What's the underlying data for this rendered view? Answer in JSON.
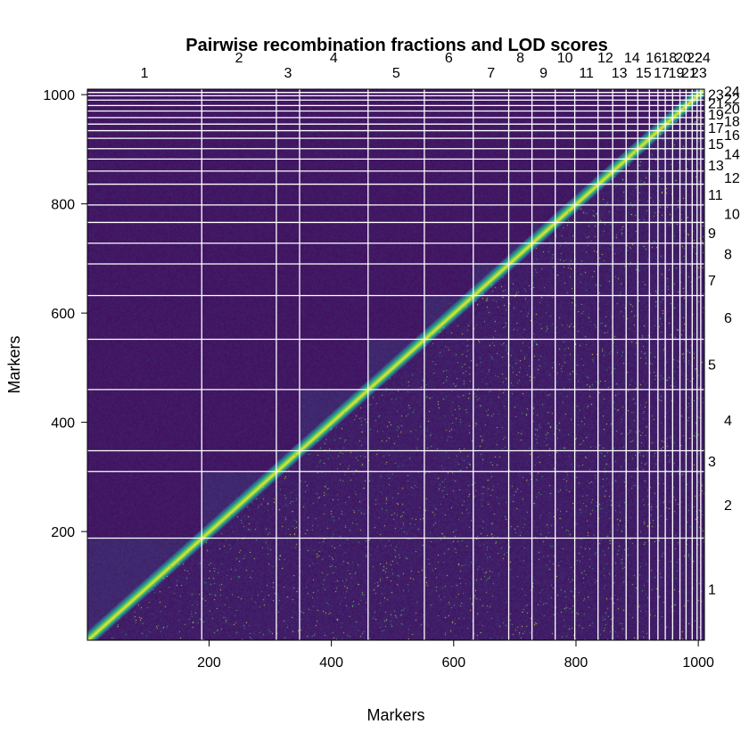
{
  "chart_data": {
    "type": "heatmap",
    "title": "Pairwise recombination fractions and LOD scores",
    "xlabel": "Markers",
    "ylabel": "Markers",
    "n_markers": 1010,
    "xlim": [
      1,
      1010
    ],
    "ylim": [
      1,
      1010
    ],
    "x_ticks": [
      "200",
      "400",
      "600",
      "800",
      "1000"
    ],
    "y_ticks": [
      "200",
      "400",
      "600",
      "800",
      "1000"
    ],
    "tick_values": [
      200,
      400,
      600,
      800,
      1000
    ],
    "color_scale": "viridis",
    "colors": {
      "low": "#440154",
      "mid": "#21908c",
      "high": "#fde725",
      "grid": "#ffffff",
      "axis": "#000000"
    },
    "upper_triangle": "recombination fraction",
    "lower_triangle": "LOD score",
    "chromosomes": [
      {
        "name": "1",
        "end": 188
      },
      {
        "name": "2",
        "end": 310
      },
      {
        "name": "3",
        "end": 348
      },
      {
        "name": "4",
        "end": 460
      },
      {
        "name": "5",
        "end": 552
      },
      {
        "name": "6",
        "end": 632
      },
      {
        "name": "7",
        "end": 690
      },
      {
        "name": "8",
        "end": 728
      },
      {
        "name": "9",
        "end": 766
      },
      {
        "name": "10",
        "end": 798
      },
      {
        "name": "11",
        "end": 836
      },
      {
        "name": "12",
        "end": 860
      },
      {
        "name": "13",
        "end": 882
      },
      {
        "name": "14",
        "end": 901
      },
      {
        "name": "15",
        "end": 920
      },
      {
        "name": "16",
        "end": 934
      },
      {
        "name": "17",
        "end": 946
      },
      {
        "name": "18",
        "end": 958
      },
      {
        "name": "19",
        "end": 970
      },
      {
        "name": "20",
        "end": 980
      },
      {
        "name": "21",
        "end": 990
      },
      {
        "name": "22",
        "end": 998
      },
      {
        "name": "23",
        "end": 1004
      },
      {
        "name": "24",
        "end": 1010
      }
    ]
  }
}
